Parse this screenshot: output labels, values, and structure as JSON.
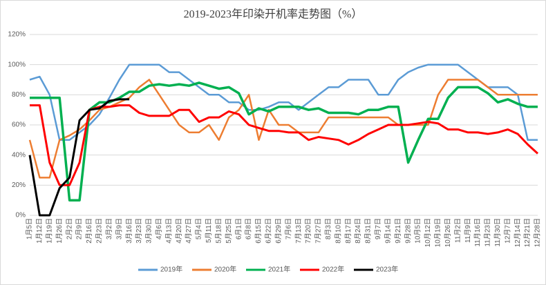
{
  "chart_data": {
    "type": "line",
    "title": "2019-2023年印染开机率走势图（%）",
    "categories": [
      "1月5日",
      "1月12日",
      "1月19日",
      "1月26日",
      "2月2日",
      "2月9日",
      "2月16日",
      "2月23日",
      "3月2日",
      "3月9日",
      "3月16日",
      "3月23日",
      "3月30日",
      "4月6日",
      "4月13日",
      "4月20日",
      "4月27日",
      "5月4日",
      "5月11日",
      "5月18日",
      "5月25日",
      "6月1日",
      "6月8日",
      "6月15日",
      "6月22日",
      "6月29日",
      "7月6日",
      "7月13日",
      "7月20日",
      "7月27日",
      "8月3日",
      "8月10日",
      "8月17日",
      "8月24日",
      "8月31日",
      "9月7日",
      "9月14日",
      "9月21日",
      "9月28日",
      "10月5日",
      "10月12日",
      "10月19日",
      "10月26日",
      "11月2日",
      "11月9日",
      "11月16日",
      "11月23日",
      "11月30日",
      "12月7日",
      "12月14日",
      "12月21日",
      "12月28日"
    ],
    "series": [
      {
        "name": "2019年",
        "color": "#5b9bd5",
        "values": [
          90,
          92,
          80,
          50,
          50,
          55,
          60,
          67,
          78,
          90,
          100,
          100,
          100,
          100,
          95,
          95,
          90,
          85,
          80,
          80,
          75,
          75,
          70,
          70,
          72,
          75,
          75,
          70,
          75,
          80,
          85,
          85,
          90,
          90,
          90,
          80,
          80,
          90,
          95,
          98,
          100,
          100,
          100,
          100,
          95,
          90,
          85,
          85,
          85,
          80,
          50,
          50
        ]
      },
      {
        "name": "2020年",
        "color": "#ed7d31",
        "values": [
          50,
          25,
          25,
          50,
          53,
          57,
          63,
          70,
          72,
          75,
          78,
          85,
          90,
          80,
          70,
          60,
          55,
          55,
          60,
          50,
          65,
          70,
          80,
          50,
          70,
          60,
          60,
          55,
          55,
          55,
          65,
          65,
          65,
          65,
          65,
          65,
          65,
          60,
          60,
          60,
          60,
          80,
          90,
          90,
          90,
          90,
          85,
          80,
          80,
          80,
          80,
          80
        ]
      },
      {
        "name": "2021年",
        "color": "#00b050",
        "values": [
          78,
          78,
          78,
          78,
          10,
          10,
          70,
          75,
          75,
          78,
          82,
          82,
          86,
          87,
          86,
          87,
          86,
          88,
          86,
          84,
          85,
          81,
          67,
          71,
          69,
          72,
          72,
          72,
          70,
          71,
          68,
          68,
          68,
          67,
          70,
          70,
          72,
          72,
          35,
          50,
          64,
          64,
          78,
          85,
          85,
          85,
          81,
          75,
          77,
          74,
          72,
          72
        ]
      },
      {
        "name": "2022年",
        "color": "#ff0000",
        "values": [
          73,
          73,
          35,
          20,
          20,
          35,
          70,
          72,
          72,
          73,
          73,
          68,
          66,
          66,
          66,
          70,
          70,
          62,
          65,
          65,
          69,
          67,
          60,
          58,
          56,
          56,
          55,
          55,
          50,
          52,
          51,
          50,
          47,
          50,
          54,
          57,
          60,
          60,
          60,
          61,
          62,
          61,
          57,
          57,
          55,
          55,
          54,
          55,
          57,
          54,
          47,
          41
        ]
      },
      {
        "name": "2023年",
        "color": "#000000",
        "values": [
          40,
          0,
          0,
          18,
          25,
          63,
          70,
          71,
          76,
          77,
          77,
          null,
          null,
          null,
          null,
          null,
          null,
          null,
          null,
          null,
          null,
          null,
          null,
          null,
          null,
          null,
          null,
          null,
          null,
          null,
          null,
          null,
          null,
          null,
          null,
          null,
          null,
          null,
          null,
          null,
          null,
          null,
          null,
          null,
          null,
          null,
          null,
          null,
          null,
          null,
          null,
          null
        ]
      }
    ],
    "ylim": [
      0,
      120
    ],
    "yticks": [
      {
        "value": 0,
        "label": "0%"
      },
      {
        "value": 20,
        "label": "20%"
      },
      {
        "value": 40,
        "label": "40%"
      },
      {
        "value": 60,
        "label": "60%"
      },
      {
        "value": 80,
        "label": "80%"
      },
      {
        "value": 100,
        "label": "100%"
      },
      {
        "value": 120,
        "label": "120%"
      }
    ],
    "grid": true,
    "legend": "bottom"
  }
}
